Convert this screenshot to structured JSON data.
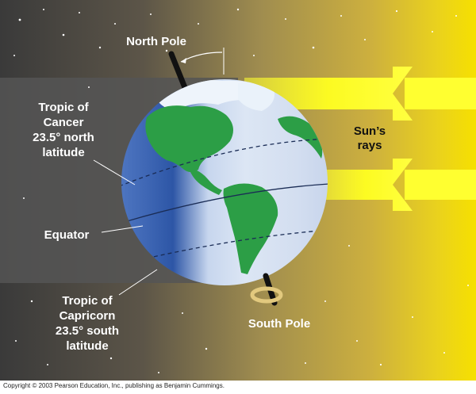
{
  "labels": {
    "north_pole": "North Pole",
    "south_pole": "South Pole",
    "suns_rays": [
      "Sun’s",
      "rays"
    ],
    "tropic_of_cancer": [
      "Tropic of",
      "Cancer",
      "23.5° north",
      "latitude"
    ],
    "equator": "Equator",
    "tropic_of_capricorn": [
      "Tropic of",
      "Capricorn",
      "23.5° south",
      "latitude"
    ]
  },
  "copyright": "Copyright © 2003 Pearson Education, Inc., publishing as Benjamin Cummings.",
  "colors": {
    "space_dark": "#3a3a3a",
    "shadow_band": "#525252",
    "sunlight_gold": "#d2b13e",
    "sun_yellow": "#f4dc00",
    "ray_yellow": "#ffff22",
    "ocean_blue": "#6f93d6",
    "ocean_light": "#e4ecf6",
    "land_green": "#2c9e46"
  }
}
